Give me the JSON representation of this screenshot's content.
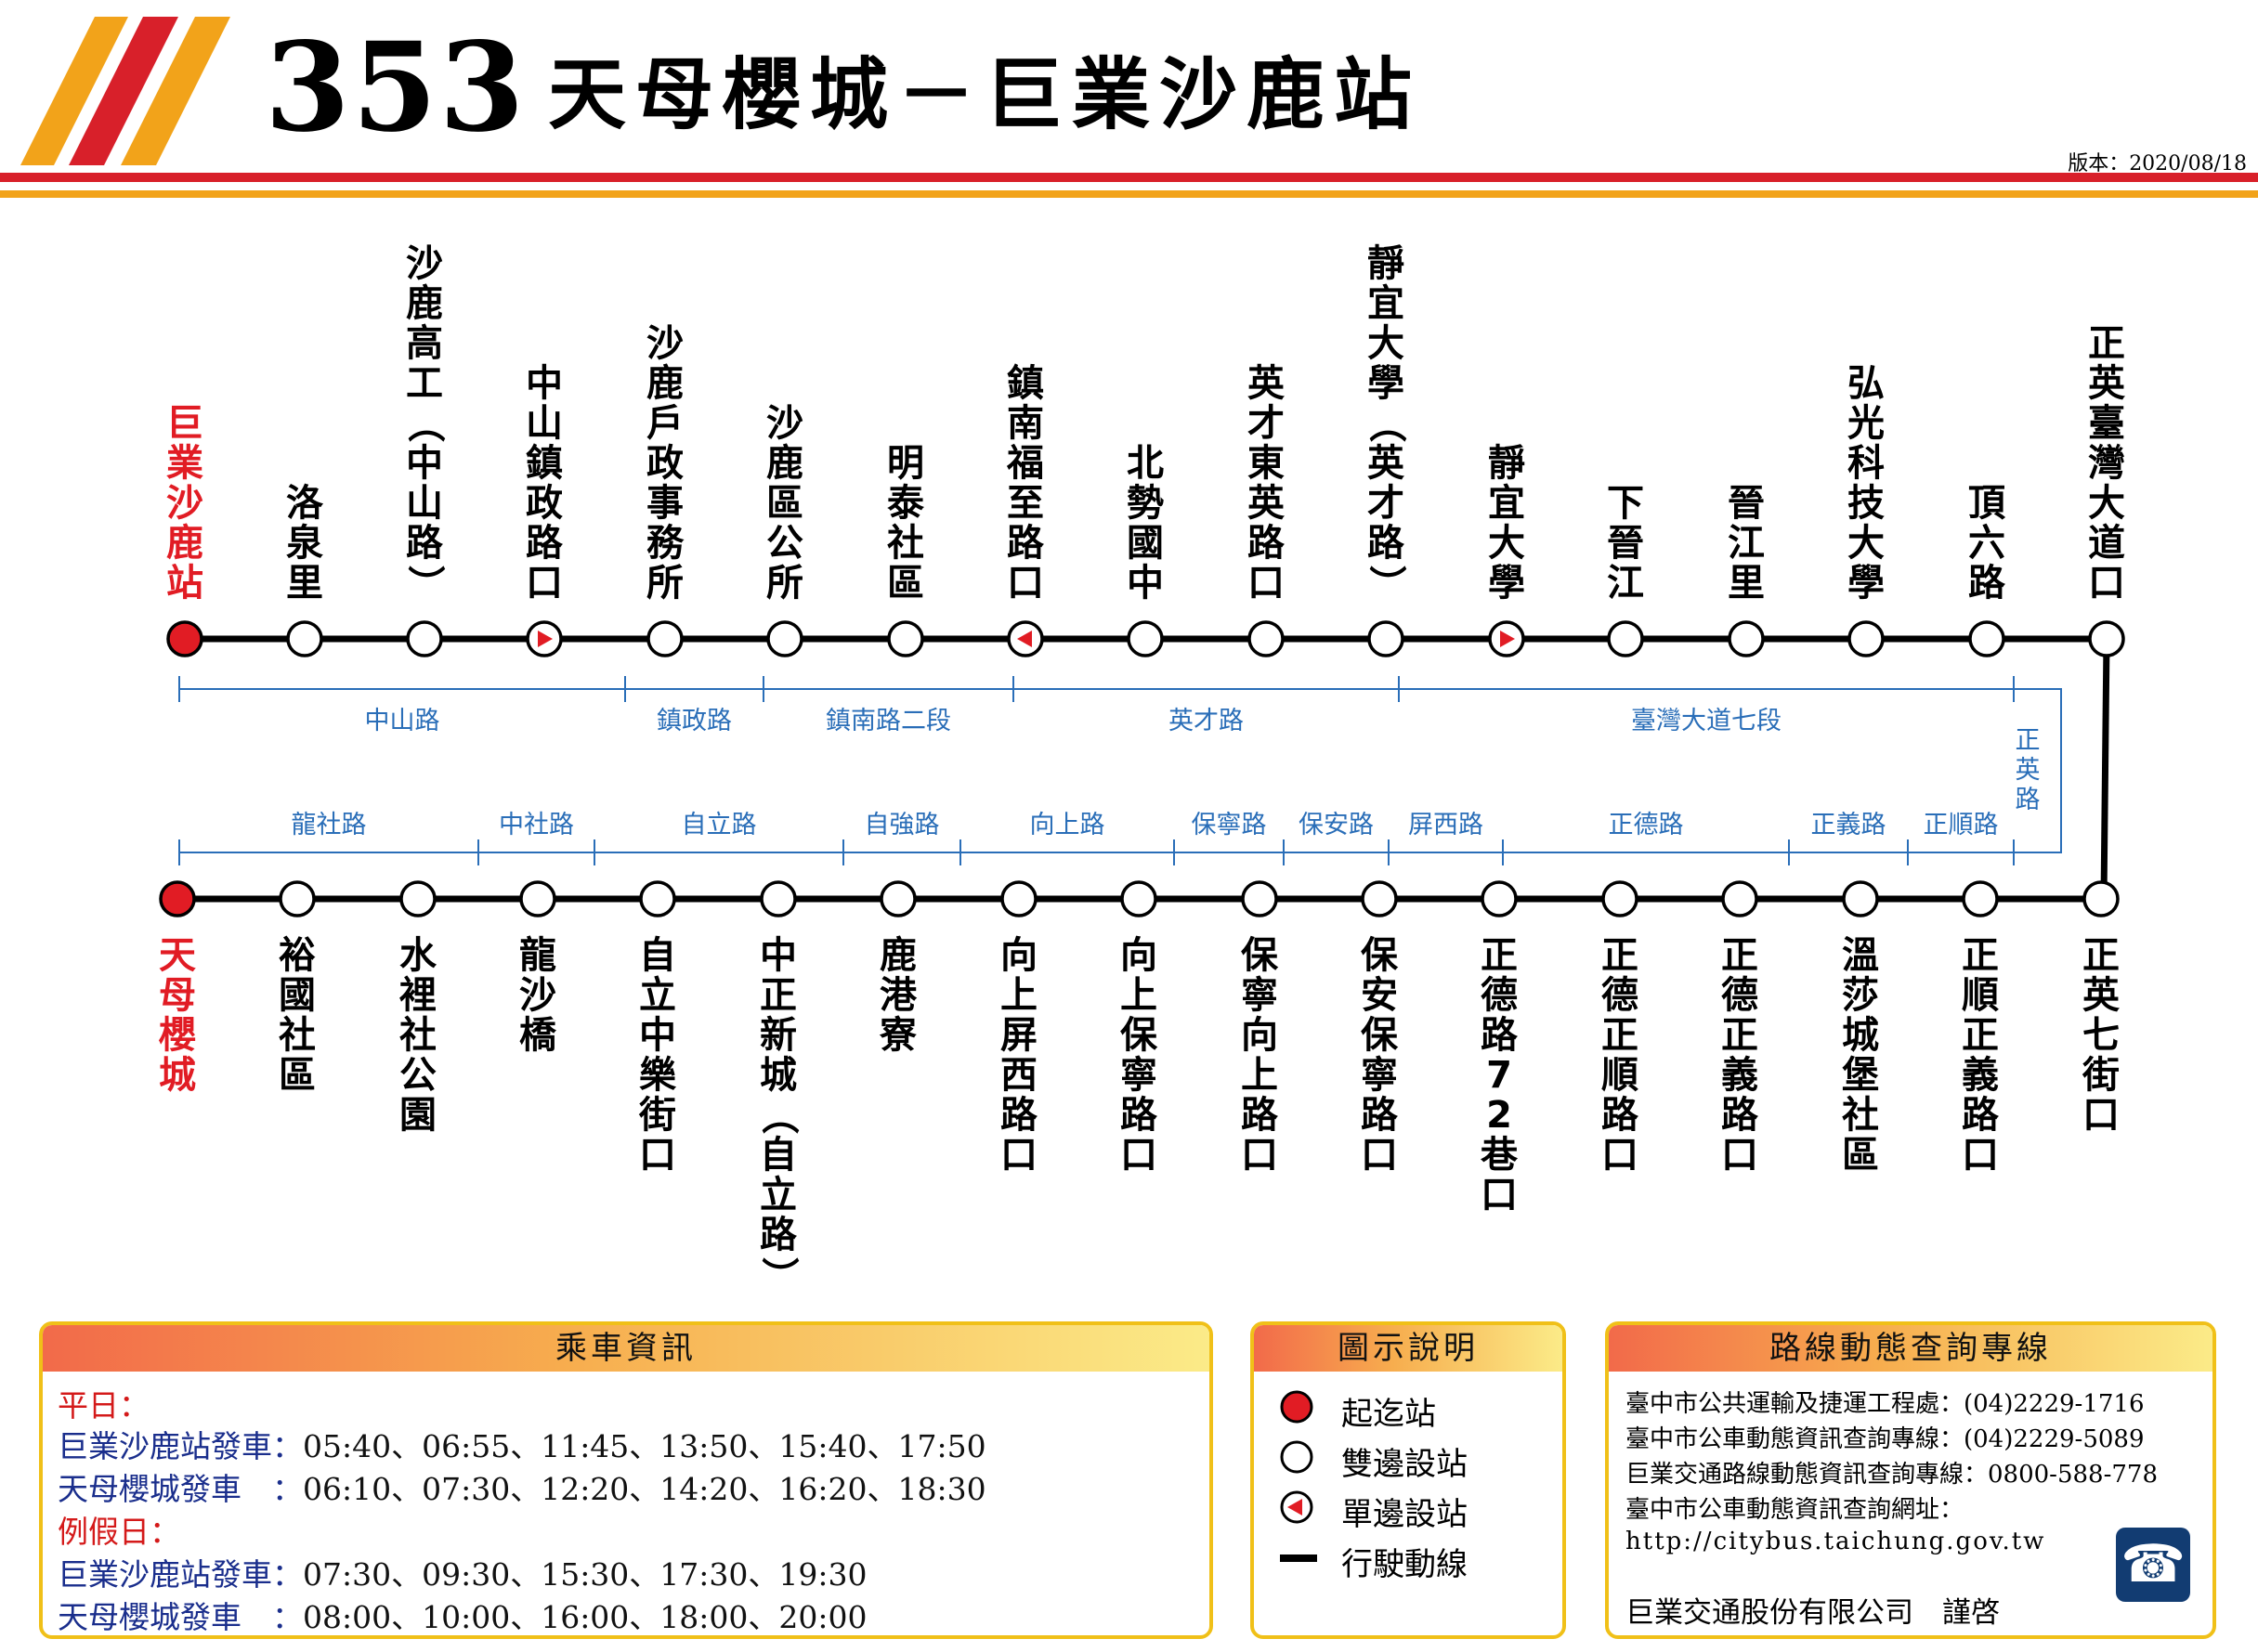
{
  "header": {
    "route_number": "353",
    "route_name": "天母櫻城－巨業沙鹿站",
    "version": "版本：2020/08/18"
  },
  "colors": {
    "stripe_red": "#d8202a",
    "stripe_orange": "#f2a31a",
    "terminal": "#e11c24",
    "road_label": "#2a6eb8",
    "schedule_label": "#1a2e8c",
    "holiday_label": "#d41a1a",
    "box_border": "#f0c018"
  },
  "stop_legend": {
    "terminal": "terminal-stop",
    "both": "both-direction-stop",
    "one_way": "one-direction-stop"
  },
  "top_stops": [
    {
      "name": "巨業沙鹿站",
      "type": "terminal"
    },
    {
      "name": "洛泉里",
      "type": "both"
    },
    {
      "name": "沙鹿高工（中山路）",
      "type": "both"
    },
    {
      "name": "中山鎮政路口",
      "type": "one_way"
    },
    {
      "name": "沙鹿戶政事務所",
      "type": "both"
    },
    {
      "name": "沙鹿區公所",
      "type": "both"
    },
    {
      "name": "明泰社區",
      "type": "both"
    },
    {
      "name": "鎮南福至路口",
      "type": "one_way"
    },
    {
      "name": "北勢國中",
      "type": "both"
    },
    {
      "name": "英才東英路口",
      "type": "both"
    },
    {
      "name": "靜宜大學（英才路）",
      "type": "both"
    },
    {
      "name": "靜宜大學",
      "type": "one_way"
    },
    {
      "name": "下晉江",
      "type": "both"
    },
    {
      "name": "晉江里",
      "type": "both"
    },
    {
      "name": "弘光科技大學",
      "type": "both"
    },
    {
      "name": "頂六路",
      "type": "both"
    },
    {
      "name": "正英臺灣大道口",
      "type": "both"
    }
  ],
  "bottom_stops": [
    {
      "name": "天母櫻城",
      "type": "terminal"
    },
    {
      "name": "裕國社區",
      "type": "both"
    },
    {
      "name": "水裡社公園",
      "type": "both"
    },
    {
      "name": "龍沙橋",
      "type": "both"
    },
    {
      "name": "自立中樂街口",
      "type": "both"
    },
    {
      "name": "中正新城（自立路）",
      "type": "both"
    },
    {
      "name": "鹿港寮",
      "type": "both"
    },
    {
      "name": "向上屏西路口",
      "type": "both"
    },
    {
      "name": "向上保寧路口",
      "type": "both"
    },
    {
      "name": "保寧向上路口",
      "type": "both"
    },
    {
      "name": "保安保寧路口",
      "type": "both"
    },
    {
      "name": "正德路72巷口",
      "type": "both"
    },
    {
      "name": "正德正順路口",
      "type": "both"
    },
    {
      "name": "正德正義路口",
      "type": "both"
    },
    {
      "name": "溫莎城堡社區",
      "type": "both"
    },
    {
      "name": "正順正義路口",
      "type": "both"
    },
    {
      "name": "正英七街口",
      "type": "both"
    }
  ],
  "top_roads": [
    "中山路",
    "鎮政路",
    "鎮南路二段",
    "英才路",
    "臺灣大道七段"
  ],
  "bottom_roads": [
    "龍社路",
    "中社路",
    "自立路",
    "自強路",
    "向上路",
    "保寧路",
    "保安路",
    "屏西路",
    "正德路",
    "正義路",
    "正順路"
  ],
  "side_road": "正英路",
  "ride_info": {
    "title": "乘車資訊",
    "weekday_label": "平日：",
    "weekday": [
      {
        "label": "巨業沙鹿站發車：",
        "times": "05:40、06:55、11:45、13:50、15:40、17:50"
      },
      {
        "label": "天母櫻城發車　：",
        "times": "06:10、07:30、12:20、14:20、16:20、18:30"
      }
    ],
    "holiday_label": "例假日：",
    "holiday": [
      {
        "label": "巨業沙鹿站發車：",
        "times": "07:30、09:30、15:30、17:30、19:30"
      },
      {
        "label": "天母櫻城發車　：",
        "times": "08:00、10:00、16:00、18:00、20:00"
      }
    ]
  },
  "legend": {
    "title": "圖示說明",
    "items": [
      "起迄站",
      "雙邊設站",
      "單邊設站",
      "行駛動線"
    ]
  },
  "hotline": {
    "title": "路線動態查詢專線",
    "lines": [
      "臺中市公共運輸及捷運工程處：(04)2229-1716",
      "臺中市公車動態資訊查詢專線：(04)2229-5089",
      "巨業交通路線動態資訊查詢專線：0800-588-778",
      "臺中市公車動態資訊查詢網址：",
      "http://citybus.taichung.gov.tw"
    ],
    "company": "巨業交通股份有限公司　謹啓",
    "icon": "phone-icon"
  }
}
